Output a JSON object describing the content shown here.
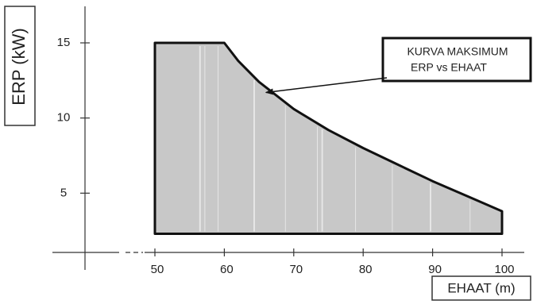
{
  "chart_data": {
    "type": "area",
    "title": "",
    "xlabel": "EHAAT (m)",
    "ylabel": "ERP (kW)",
    "xlim": [
      40,
      104
    ],
    "ylim": [
      0,
      17
    ],
    "x_ticks": [
      50,
      60,
      70,
      80,
      90,
      100
    ],
    "x_tick_labels": [
      "50",
      "60",
      "70",
      "80",
      "90",
      "100"
    ],
    "y_ticks": [
      5,
      10,
      15
    ],
    "y_tick_labels": [
      "5",
      "10",
      "15"
    ],
    "x_axis_break": true,
    "grid": false,
    "fill_color": "#c8c8c8",
    "outline_color": "#111111",
    "baseline_erp": 2.3,
    "series": [
      {
        "x": [
          50,
          60,
          62,
          65,
          70,
          75,
          80,
          85,
          90,
          95,
          100
        ],
        "values": [
          15,
          15,
          13.8,
          12.4,
          10.6,
          9.2,
          8.0,
          6.9,
          5.8,
          4.8,
          3.8
        ]
      }
    ],
    "annotations": [
      {
        "lines": [
          "KURVA MAKSIMUM",
          "ERP vs EHAAT"
        ],
        "target_x": 66,
        "target_y": 11.7
      }
    ]
  }
}
